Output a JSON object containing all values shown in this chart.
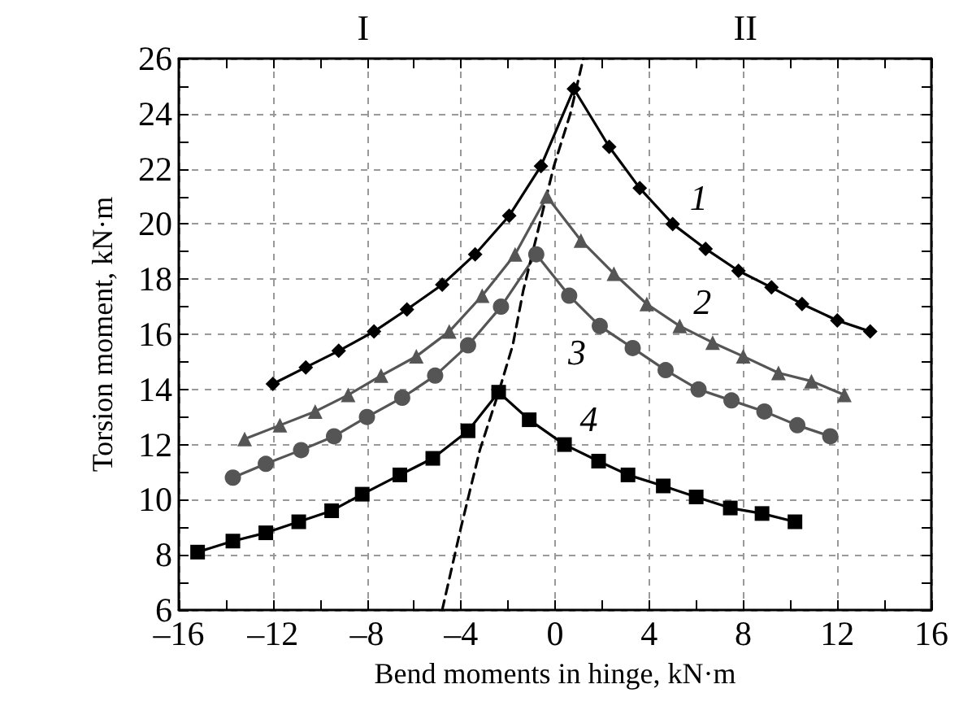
{
  "chart_data": {
    "type": "line",
    "xlabel": "Bend moments in hinge, kN·m",
    "ylabel": "Torsion moment, kN·m",
    "xlim": [
      -16,
      16
    ],
    "xticks": [
      {
        "value": -16,
        "label": "–16"
      },
      {
        "value": -14,
        "label": null
      },
      {
        "value": -12,
        "label": "–12"
      },
      {
        "value": -10,
        "label": null
      },
      {
        "value": -8,
        "label": "–8"
      },
      {
        "value": -6,
        "label": null
      },
      {
        "value": -4,
        "label": "–4"
      },
      {
        "value": -2,
        "label": null
      },
      {
        "value": 0,
        "label": "0"
      },
      {
        "value": 2,
        "label": null
      },
      {
        "value": 4,
        "label": "4"
      },
      {
        "value": 6,
        "label": null
      },
      {
        "value": 8,
        "label": "8"
      },
      {
        "value": 10,
        "label": null
      },
      {
        "value": 12,
        "label": "12"
      },
      {
        "value": 14,
        "label": null
      },
      {
        "value": 16,
        "label": "16"
      }
    ],
    "ylim": [
      6,
      26
    ],
    "yticks": [
      6,
      {
        "value": 7,
        "label": null
      },
      8,
      {
        "value": 9,
        "label": null
      },
      10,
      {
        "value": 11,
        "label": null
      },
      12,
      {
        "value": 13,
        "label": null
      },
      14,
      {
        "value": 15,
        "label": null
      },
      16,
      {
        "value": 17,
        "label": null
      },
      18,
      {
        "value": 19,
        "label": null
      },
      20,
      {
        "value": 21,
        "label": null
      },
      22,
      {
        "value": 23,
        "label": null
      },
      24,
      {
        "value": 25,
        "label": null
      },
      26
    ],
    "grid": true,
    "series": [
      {
        "name": "1",
        "color": "#000000",
        "marker": "diamond",
        "line_style": "solid",
        "x": [
          -12.0,
          -10.6,
          -9.2,
          -7.7,
          -6.3,
          -4.8,
          -3.4,
          -1.95,
          -0.6,
          0.8,
          2.3,
          3.6,
          5.0,
          6.4,
          7.8,
          9.2,
          10.5,
          12.0,
          13.4
        ],
        "values": [
          14.2,
          14.8,
          15.4,
          16.1,
          16.9,
          17.8,
          18.9,
          20.3,
          22.1,
          24.9,
          22.8,
          21.3,
          20.0,
          19.1,
          18.3,
          17.7,
          17.1,
          16.5,
          16.1
        ]
      },
      {
        "name": "2",
        "color": "#555555",
        "marker": "triangle",
        "line_style": "solid",
        "x": [
          -13.2,
          -11.7,
          -10.2,
          -8.8,
          -7.4,
          -5.9,
          -4.5,
          -3.1,
          -1.7,
          -0.35,
          1.1,
          2.5,
          3.9,
          5.3,
          6.7,
          8.0,
          9.5,
          10.9,
          12.3
        ],
        "values": [
          12.2,
          12.7,
          13.2,
          13.8,
          14.5,
          15.2,
          16.1,
          17.4,
          18.9,
          21.0,
          19.4,
          18.2,
          17.1,
          16.3,
          15.7,
          15.2,
          14.6,
          14.3,
          13.8
        ]
      },
      {
        "name": "3",
        "color": "#555555",
        "marker": "circle",
        "line_style": "solid",
        "x": [
          -13.7,
          -12.3,
          -10.8,
          -9.4,
          -8.0,
          -6.5,
          -5.1,
          -3.7,
          -2.3,
          -0.8,
          0.6,
          1.9,
          3.3,
          4.7,
          6.1,
          7.5,
          8.9,
          10.3,
          11.7
        ],
        "values": [
          10.8,
          11.3,
          11.8,
          12.3,
          13.0,
          13.7,
          14.5,
          15.6,
          17.0,
          18.9,
          17.4,
          16.3,
          15.5,
          14.7,
          14.0,
          13.6,
          13.2,
          12.7,
          12.3
        ]
      },
      {
        "name": "4",
        "color": "#000000",
        "marker": "square",
        "line_style": "solid",
        "x": [
          -15.2,
          -13.7,
          -12.3,
          -10.9,
          -9.5,
          -8.2,
          -6.6,
          -5.2,
          -3.7,
          -2.4,
          -1.1,
          0.4,
          1.85,
          3.1,
          4.6,
          6.0,
          7.45,
          8.8,
          10.2
        ],
        "values": [
          8.1,
          8.5,
          8.8,
          9.2,
          9.6,
          10.2,
          10.9,
          11.5,
          12.5,
          13.9,
          12.9,
          12.0,
          11.4,
          10.9,
          10.5,
          10.1,
          9.7,
          9.5,
          9.2
        ]
      },
      {
        "color": "#000000",
        "marker": "none",
        "line_style": "dashed",
        "x": [
          -4.8,
          -4.0,
          -3.2,
          -2.4,
          -1.8,
          -1.35,
          -0.6,
          -0.05,
          0.65,
          1.2
        ],
        "values": [
          6,
          9.0,
          11.8,
          13.9,
          15.6,
          17.6,
          20.2,
          22.1,
          24.0,
          26
        ]
      }
    ],
    "annotations": [
      "I",
      "II"
    ]
  }
}
